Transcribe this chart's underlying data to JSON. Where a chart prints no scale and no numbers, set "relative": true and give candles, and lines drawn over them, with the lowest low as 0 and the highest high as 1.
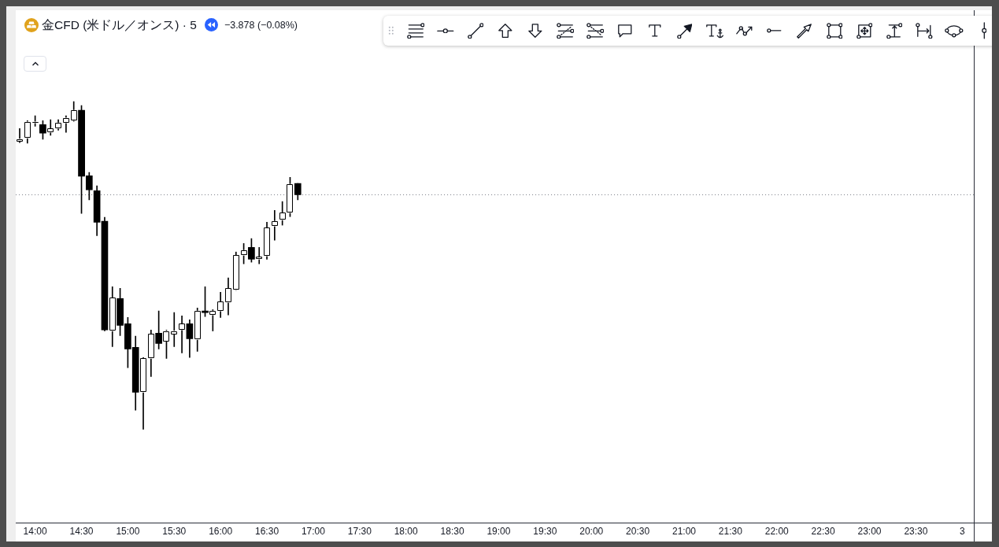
{
  "chart_data": {
    "type": "candlestick",
    "title": "金CFD (米ドル／オンス) · 5",
    "subtitle": "−3.878 (−0.08%)",
    "relative": true,
    "categories": [
      null,
      null,
      "14:00",
      null,
      null,
      null,
      null,
      null,
      "14:30",
      null,
      null,
      null,
      null,
      null,
      "15:00",
      null,
      null,
      null,
      null,
      null,
      "15:30",
      null,
      null,
      null,
      null,
      null,
      "16:00",
      null,
      null,
      null,
      null,
      null,
      "16:30",
      null,
      null,
      null,
      null,
      null,
      "17:00",
      null,
      null,
      null,
      null,
      null,
      "17:30",
      null,
      null,
      null,
      null,
      null,
      "18:00",
      null,
      null,
      null,
      null,
      null,
      "18:30",
      null,
      null,
      null,
      null,
      null,
      "19:00",
      null,
      null,
      null,
      null,
      null,
      "19:30",
      null,
      null,
      null,
      null,
      null,
      "20:00",
      null,
      null,
      null,
      null,
      null,
      "20:30",
      null,
      null,
      null,
      null,
      null,
      "21:00",
      null,
      null,
      null,
      null,
      null,
      "21:30",
      null,
      null,
      null,
      null,
      null,
      "22:00",
      null,
      null,
      null,
      null,
      null,
      "22:30",
      null,
      null,
      null,
      null,
      null,
      "23:00",
      null,
      null,
      null,
      null,
      null,
      "23:30",
      null,
      null,
      null,
      null,
      null,
      "3",
      null
    ],
    "ohlc": [
      [
        0.879,
        0.918,
        0.875,
        0.886
      ],
      [
        0.889,
        0.942,
        0.873,
        0.938
      ],
      [
        0.935,
        0.957,
        0.925,
        0.938
      ],
      [
        0.93,
        0.942,
        0.885,
        0.904
      ],
      [
        0.906,
        0.945,
        0.897,
        0.918
      ],
      [
        0.918,
        0.945,
        0.913,
        0.935
      ],
      [
        0.935,
        0.957,
        0.906,
        0.95
      ],
      [
        0.942,
        1,
        0.94,
        0.974
      ],
      [
        0.974,
        0.988,
        0.659,
        0.772
      ],
      [
        0.774,
        0.784,
        0.7,
        0.731
      ],
      [
        0.728,
        0.743,
        0.591,
        0.632
      ],
      [
        0.635,
        0.647,
        0.3,
        0.303
      ],
      [
        0.3,
        0.435,
        0.252,
        0.401
      ],
      [
        0.399,
        0.43,
        0.286,
        0.317
      ],
      [
        0.322,
        0.341,
        0.188,
        0.245
      ],
      [
        0.25,
        0.284,
        0.058,
        0.113
      ],
      [
        0.113,
        0.219,
        0,
        0.216
      ],
      [
        0.216,
        0.303,
        0.161,
        0.291
      ],
      [
        0.293,
        0.361,
        0.245,
        0.262
      ],
      [
        0.269,
        0.303,
        0.216,
        0.3
      ],
      [
        0.291,
        0.356,
        0.252,
        0.3
      ],
      [
        0.303,
        0.346,
        0.233,
        0.322
      ],
      [
        0.322,
        0.334,
        0.219,
        0.276
      ],
      [
        0.274,
        0.37,
        0.238,
        0.361
      ],
      [
        0.361,
        0.435,
        0.344,
        0.356
      ],
      [
        0.349,
        0.365,
        0.3,
        0.361
      ],
      [
        0.361,
        0.418,
        0.341,
        0.389
      ],
      [
        0.387,
        0.462,
        0.349,
        0.43
      ],
      [
        0.425,
        0.541,
        0.424,
        0.531
      ],
      [
        0.531,
        0.567,
        0.505,
        0.546
      ],
      [
        0.555,
        0.582,
        0.51,
        0.519
      ],
      [
        0.519,
        0.555,
        0.505,
        0.526
      ],
      [
        0.529,
        0.632,
        0.519,
        0.615
      ],
      [
        0.62,
        0.668,
        0.577,
        0.635
      ],
      [
        0.639,
        0.695,
        0.623,
        0.661
      ],
      [
        0.661,
        0.769,
        0.649,
        0.748
      ],
      [
        0.75,
        0.75,
        0.7,
        0.716
      ],
      null,
      null,
      null,
      null,
      null,
      null,
      null,
      null,
      null,
      null,
      null,
      null,
      null,
      null,
      null,
      null,
      null,
      null,
      null,
      null,
      null,
      null,
      null,
      null,
      null,
      null,
      null,
      null,
      null,
      null,
      null,
      null,
      null,
      null,
      null,
      null,
      null,
      null,
      null,
      null,
      null,
      null,
      null,
      null,
      null,
      null,
      null,
      null,
      null,
      null,
      null,
      null,
      null,
      null,
      null,
      null,
      null,
      null,
      null,
      null,
      null,
      null,
      null,
      null,
      null,
      null,
      null,
      null,
      null,
      null,
      null,
      null,
      null,
      null,
      null,
      null,
      null,
      null,
      null,
      null,
      null,
      null,
      null,
      null,
      null,
      null,
      null
    ],
    "color": "#000000",
    "colors": [
      "#ffffff",
      "#ffffff",
      "#ffffff",
      "#000000",
      "#ffffff",
      "#ffffff",
      "#ffffff",
      "#ffffff",
      "#000000",
      "#000000",
      "#000000",
      "#000000",
      "#ffffff",
      "#000000",
      "#000000",
      "#000000",
      "#ffffff",
      "#ffffff",
      "#000000",
      "#ffffff",
      "#ffffff",
      "#ffffff",
      "#000000",
      "#ffffff",
      "#000000",
      "#ffffff",
      "#ffffff",
      "#ffffff",
      "#ffffff",
      "#ffffff",
      "#000000",
      "#ffffff",
      "#ffffff",
      "#ffffff",
      "#ffffff",
      "#ffffff",
      "#000000",
      null,
      null,
      null,
      null,
      null,
      null,
      null,
      null,
      null,
      null,
      null,
      null,
      null,
      null,
      null,
      null,
      null,
      null,
      null,
      null,
      null,
      null,
      null,
      null,
      null,
      null,
      null,
      null,
      null,
      null,
      null,
      null,
      null,
      null,
      null,
      null,
      null,
      null,
      null,
      null,
      null,
      null,
      null,
      null,
      null,
      null,
      null,
      null,
      null,
      null,
      null,
      null,
      null,
      null,
      null,
      null,
      null,
      null,
      null,
      null,
      null,
      null,
      null,
      null,
      null,
      null,
      null,
      null,
      null,
      null,
      null,
      null,
      null,
      null,
      null,
      null,
      null,
      null,
      null,
      null,
      null,
      null,
      null,
      null,
      null,
      null,
      null
    ],
    "ref_lines": [
      {
        "axis": "y",
        "value": 0.716,
        "color": "#787b86",
        "line_style": "dotted"
      }
    ]
  }
}
